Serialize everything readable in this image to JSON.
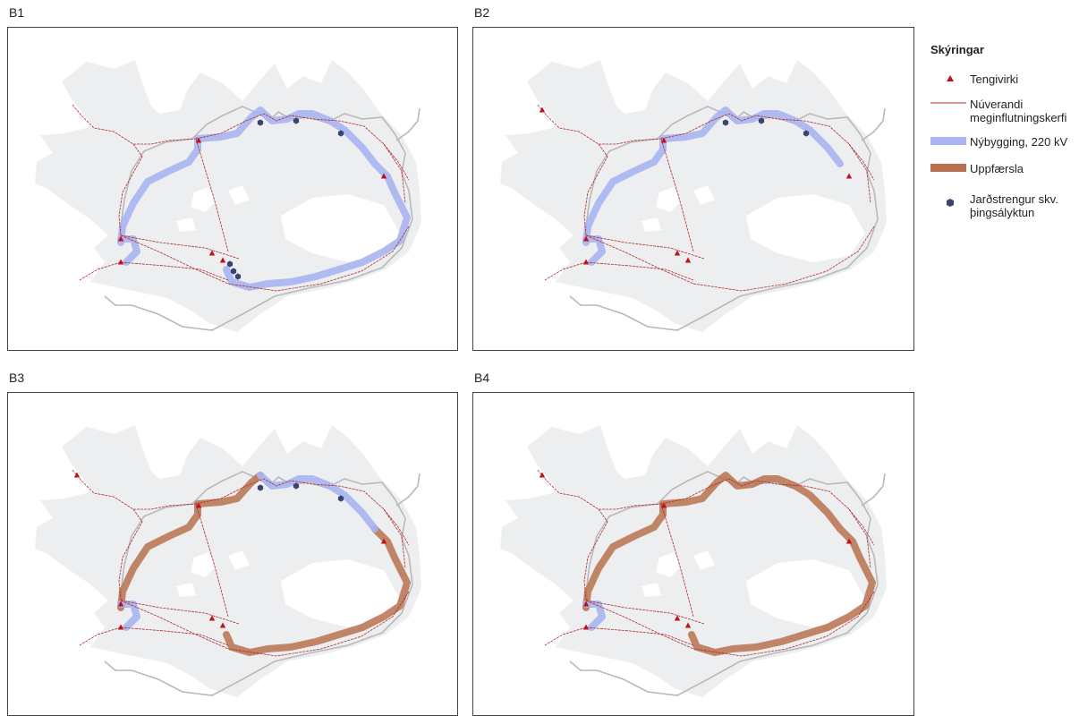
{
  "panels": [
    {
      "label": "B1",
      "variant": "b1"
    },
    {
      "label": "B2",
      "variant": "b2"
    },
    {
      "label": "B3",
      "variant": "b3"
    },
    {
      "label": "B4",
      "variant": "b4"
    }
  ],
  "legend": {
    "title": "Skýringar",
    "items": [
      {
        "key": "substation",
        "label": "Tengivirki",
        "color": "#c0121b"
      },
      {
        "key": "existing",
        "label_line1": "Núverandi",
        "label_line2": "meginflutningskerfi",
        "color": "#b22a2a"
      },
      {
        "key": "new220",
        "label": "Nýbygging, 220 kV",
        "color": "#a9b4f0"
      },
      {
        "key": "upgrade",
        "label": "Uppfærsla",
        "color": "#b8714e"
      },
      {
        "key": "cable",
        "label_line1": "Jarðstrengur skv.",
        "label_line2": "þingsályktun",
        "color": "#3b4372"
      }
    ]
  },
  "colors": {
    "land": "#eceef0",
    "lake": "#ffffff",
    "road": "#b9b9b9",
    "existing": "#b22a2a",
    "new220": "#a9b4f0",
    "upgrade": "#b8714e",
    "substation": "#c0121b",
    "cable": "#3b4372"
  }
}
